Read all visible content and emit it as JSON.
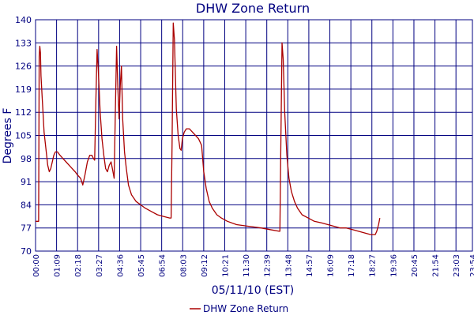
{
  "chart_data": {
    "type": "line",
    "title": "DHW Zone Return",
    "xlabel": "05/11/10 (EST)",
    "ylabel": "Degrees F",
    "ylim": [
      70,
      140
    ],
    "xlim_minutes": [
      0,
      1434
    ],
    "yticks": [
      70,
      77,
      84,
      91,
      98,
      105,
      112,
      119,
      126,
      133,
      140
    ],
    "xticks": [
      {
        "minute": 0,
        "label": "00:00"
      },
      {
        "minute": 69,
        "label": "01:09"
      },
      {
        "minute": 138,
        "label": "02:18"
      },
      {
        "minute": 207,
        "label": "03:27"
      },
      {
        "minute": 276,
        "label": "04:36"
      },
      {
        "minute": 345,
        "label": "05:45"
      },
      {
        "minute": 414,
        "label": "06:54"
      },
      {
        "minute": 483,
        "label": "08:03"
      },
      {
        "minute": 552,
        "label": "09:12"
      },
      {
        "minute": 621,
        "label": "10:21"
      },
      {
        "minute": 690,
        "label": "11:30"
      },
      {
        "minute": 759,
        "label": "12:39"
      },
      {
        "minute": 828,
        "label": "13:48"
      },
      {
        "minute": 897,
        "label": "14:57"
      },
      {
        "minute": 966,
        "label": "16:09"
      },
      {
        "minute": 1035,
        "label": "17:18"
      },
      {
        "minute": 1104,
        "label": "18:27"
      },
      {
        "minute": 1173,
        "label": "19:36"
      },
      {
        "minute": 1242,
        "label": "20:45"
      },
      {
        "minute": 1311,
        "label": "21:54"
      },
      {
        "minute": 1380,
        "label": "23:03"
      },
      {
        "minute": 1434,
        "label": "23:54"
      }
    ],
    "grid": true,
    "legend_position": "bottom-center",
    "colors": {
      "line": "#aa0000",
      "grid": "#000080",
      "axis_text": "#000080",
      "title": "#000080"
    },
    "series": [
      {
        "name": "DHW Zone Return",
        "points": [
          [
            0,
            79
          ],
          [
            10,
            79
          ],
          [
            12,
            129
          ],
          [
            14,
            132
          ],
          [
            16,
            130
          ],
          [
            18,
            123
          ],
          [
            22,
            116
          ],
          [
            28,
            106
          ],
          [
            34,
            101
          ],
          [
            40,
            96
          ],
          [
            45,
            94
          ],
          [
            50,
            95
          ],
          [
            55,
            97
          ],
          [
            60,
            99
          ],
          [
            65,
            100
          ],
          [
            72,
            100
          ],
          [
            80,
            99
          ],
          [
            90,
            98
          ],
          [
            100,
            97
          ],
          [
            110,
            96
          ],
          [
            120,
            95
          ],
          [
            130,
            94
          ],
          [
            138,
            93
          ],
          [
            148,
            92
          ],
          [
            155,
            90
          ],
          [
            162,
            93
          ],
          [
            170,
            97
          ],
          [
            178,
            99
          ],
          [
            185,
            99
          ],
          [
            190,
            98
          ],
          [
            194,
            97.5
          ],
          [
            198,
            116
          ],
          [
            202,
            131
          ],
          [
            206,
            125
          ],
          [
            212,
            112
          ],
          [
            218,
            104
          ],
          [
            224,
            99
          ],
          [
            230,
            95
          ],
          [
            236,
            94
          ],
          [
            242,
            96
          ],
          [
            248,
            97
          ],
          [
            254,
            94
          ],
          [
            258,
            92
          ],
          [
            262,
            112
          ],
          [
            266,
            132
          ],
          [
            270,
            120
          ],
          [
            274,
            110
          ],
          [
            278,
            120
          ],
          [
            282,
            126
          ],
          [
            286,
            110
          ],
          [
            292,
            100
          ],
          [
            298,
            95
          ],
          [
            305,
            90
          ],
          [
            315,
            87
          ],
          [
            330,
            85
          ],
          [
            345,
            84
          ],
          [
            360,
            83
          ],
          [
            380,
            82
          ],
          [
            400,
            81
          ],
          [
            420,
            80.5
          ],
          [
            440,
            80
          ],
          [
            445,
            80
          ],
          [
            448,
            102
          ],
          [
            452,
            139
          ],
          [
            456,
            134
          ],
          [
            462,
            113
          ],
          [
            468,
            105
          ],
          [
            474,
            101
          ],
          [
            478,
            100.5
          ],
          [
            482,
            104
          ],
          [
            488,
            106
          ],
          [
            495,
            107
          ],
          [
            505,
            107
          ],
          [
            515,
            106
          ],
          [
            525,
            105
          ],
          [
            535,
            104
          ],
          [
            545,
            102
          ],
          [
            552,
            94
          ],
          [
            560,
            89
          ],
          [
            570,
            85
          ],
          [
            580,
            83
          ],
          [
            595,
            81
          ],
          [
            610,
            80
          ],
          [
            630,
            79
          ],
          [
            660,
            78
          ],
          [
            700,
            77.5
          ],
          [
            740,
            77
          ],
          [
            770,
            76.5
          ],
          [
            800,
            76
          ],
          [
            802,
            76
          ],
          [
            805,
            100
          ],
          [
            809,
            133
          ],
          [
            813,
            128
          ],
          [
            818,
            112
          ],
          [
            825,
            99
          ],
          [
            832,
            92
          ],
          [
            840,
            88
          ],
          [
            850,
            85
          ],
          [
            860,
            83
          ],
          [
            875,
            81
          ],
          [
            895,
            80
          ],
          [
            915,
            79
          ],
          [
            940,
            78.5
          ],
          [
            960,
            78
          ],
          [
            980,
            77.5
          ],
          [
            1000,
            77
          ],
          [
            1020,
            77
          ],
          [
            1040,
            76.5
          ],
          [
            1060,
            76
          ],
          [
            1080,
            75.5
          ],
          [
            1100,
            75
          ],
          [
            1115,
            75
          ],
          [
            1120,
            76
          ],
          [
            1126,
            78
          ],
          [
            1130,
            80
          ]
        ]
      }
    ]
  }
}
